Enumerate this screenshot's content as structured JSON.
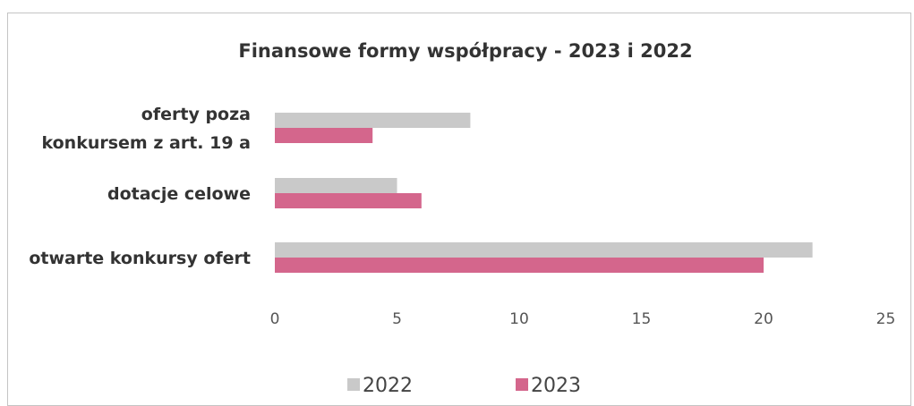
{
  "chart_data": {
    "type": "bar",
    "orientation": "horizontal",
    "title": "Finansowe formy współpracy - 2023 i 2022",
    "categories": [
      "oferty poza konkursem z art. 19 a",
      "dotacje celowe",
      "otwarte konkursy ofert"
    ],
    "category_lines": [
      [
        "oferty poza",
        "konkursem z art. 19 a"
      ],
      [
        "dotacje celowe"
      ],
      [
        "otwarte konkursy ofert"
      ]
    ],
    "series": [
      {
        "name": "2022",
        "values": [
          8,
          5,
          22
        ],
        "color": "#c9c9c9"
      },
      {
        "name": "2023",
        "values": [
          4,
          6,
          20
        ],
        "color": "#d4668c"
      }
    ],
    "xlim": [
      0,
      25
    ],
    "xticks": [
      "0",
      "5",
      "10",
      "15",
      "20",
      "25"
    ],
    "xlabel": "",
    "ylabel": "",
    "grid": false,
    "legend": "bottom"
  }
}
